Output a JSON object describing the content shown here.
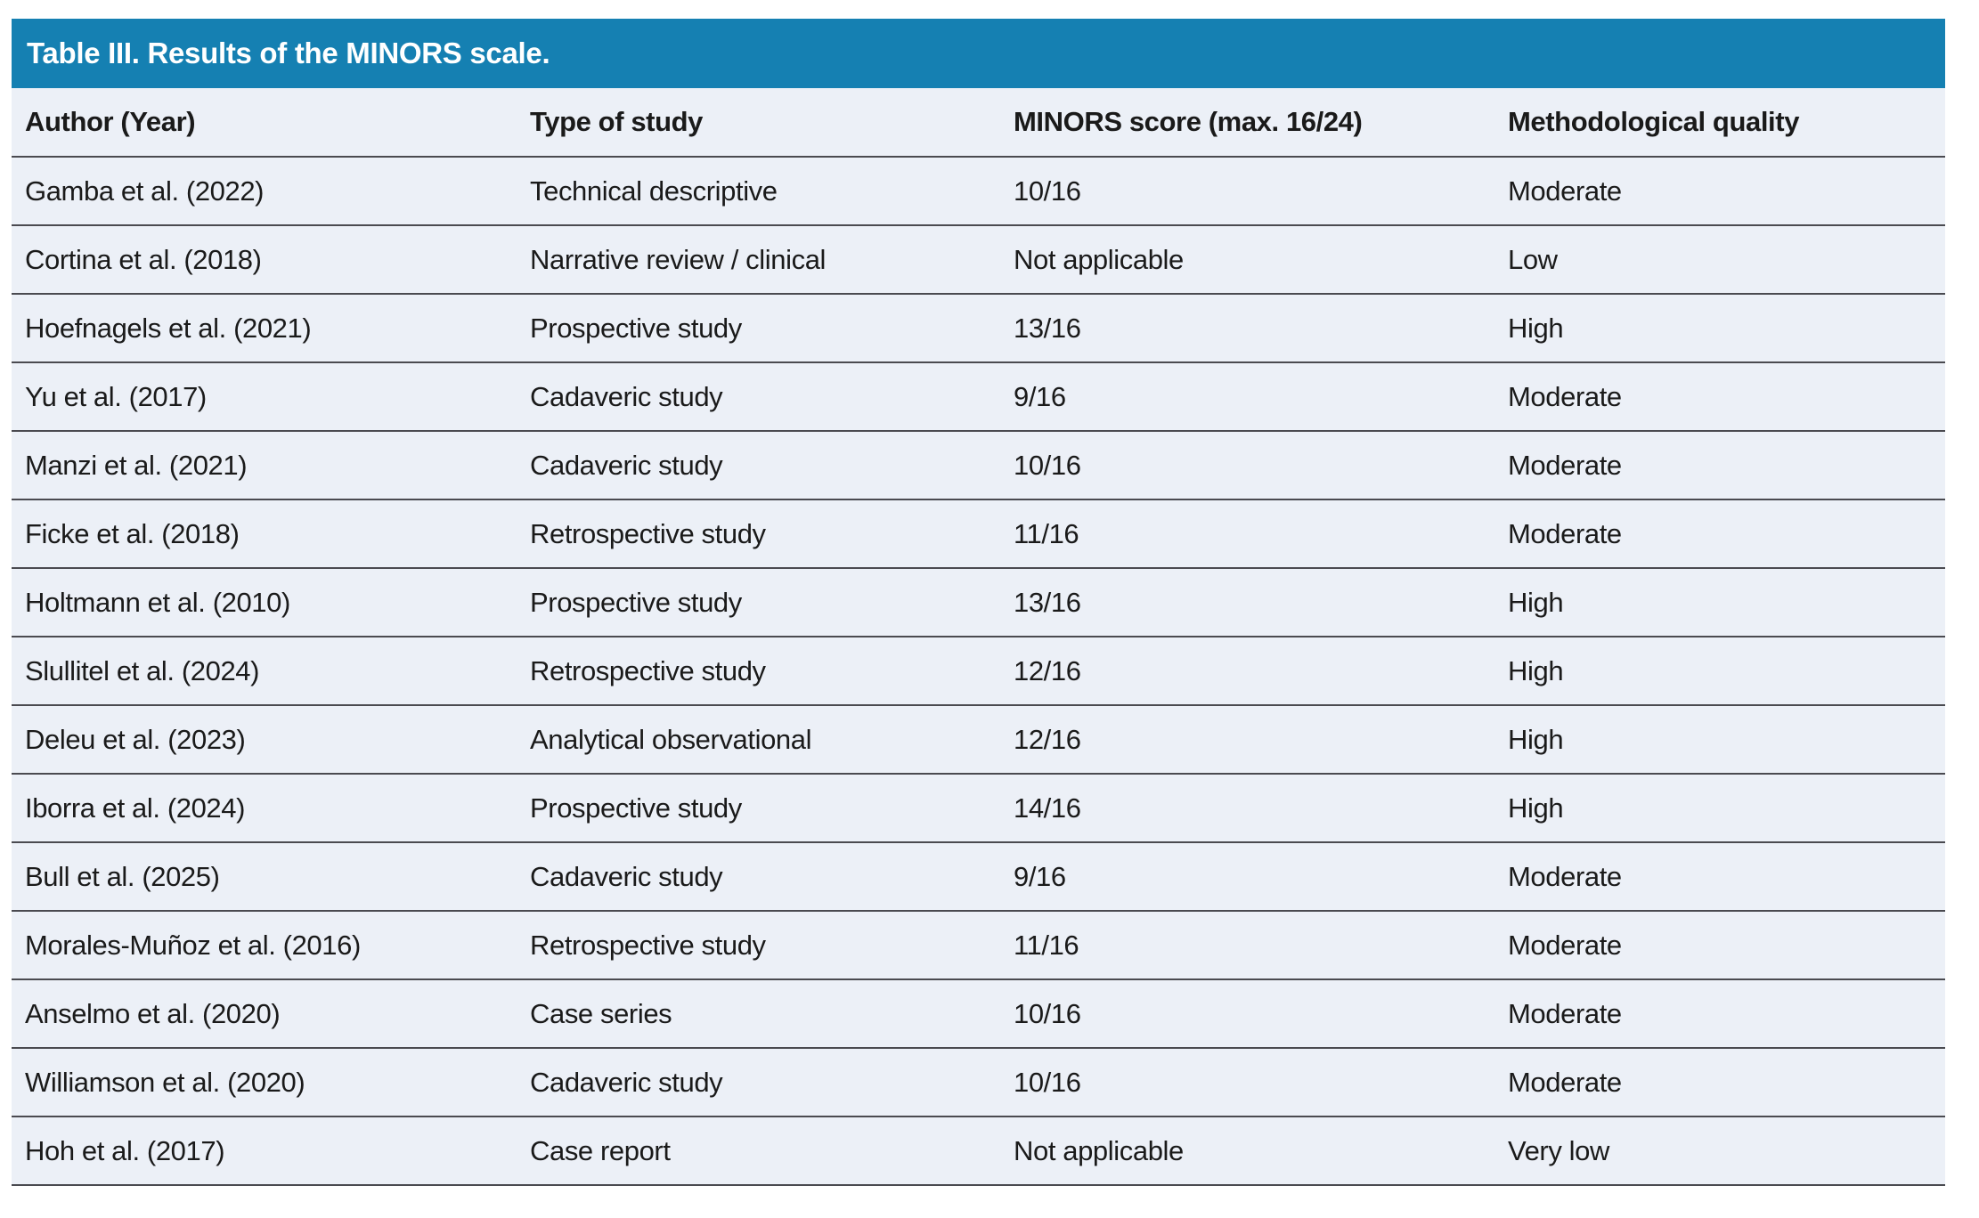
{
  "table": {
    "title": "Table III. Results of the MINORS scale.",
    "columns": [
      "Author (Year)",
      "Type of study",
      "MINORS score (max. 16/24)",
      "Methodological quality"
    ],
    "rows": [
      [
        "Gamba et al. (2022)",
        "Technical descriptive",
        "10/16",
        "Moderate"
      ],
      [
        "Cortina et al. (2018)",
        "Narrative review / clinical",
        "Not applicable",
        "Low"
      ],
      [
        "Hoefnagels et al. (2021)",
        "Prospective study",
        "13/16",
        "High"
      ],
      [
        "Yu et al. (2017)",
        "Cadaveric study",
        "9/16",
        "Moderate"
      ],
      [
        "Manzi et al. (2021)",
        "Cadaveric study",
        "10/16",
        "Moderate"
      ],
      [
        "Ficke et al. (2018)",
        "Retrospective study",
        "11/16",
        "Moderate"
      ],
      [
        "Holtmann et al. (2010)",
        "Prospective study",
        "13/16",
        "High"
      ],
      [
        "Slullitel et al. (2024)",
        "Retrospective study",
        "12/16",
        "High"
      ],
      [
        "Deleu et al. (2023)",
        "Analytical observational",
        "12/16",
        "High"
      ],
      [
        "Iborra et al. (2024)",
        "Prospective study",
        "14/16",
        "High"
      ],
      [
        "Bull et al. (2025)",
        "Cadaveric study",
        "9/16",
        "Moderate"
      ],
      [
        "Morales-Muñoz et al. (2016)",
        "Retrospective study",
        "11/16",
        "Moderate"
      ],
      [
        "Anselmo et al. (2020)",
        "Case series",
        "10/16",
        "Moderate"
      ],
      [
        "Williamson et al. (2020)",
        "Cadaveric study",
        "10/16",
        "Moderate"
      ],
      [
        "Hoh et al. (2017)",
        "Case report",
        "Not applicable",
        "Very low"
      ]
    ],
    "colors": {
      "header_bar": "#1580B2",
      "row_bg": "#ECF0F7",
      "separator": "#4A4A50",
      "text": "#1A1A1A",
      "title_text": "#FFFFFF"
    }
  }
}
